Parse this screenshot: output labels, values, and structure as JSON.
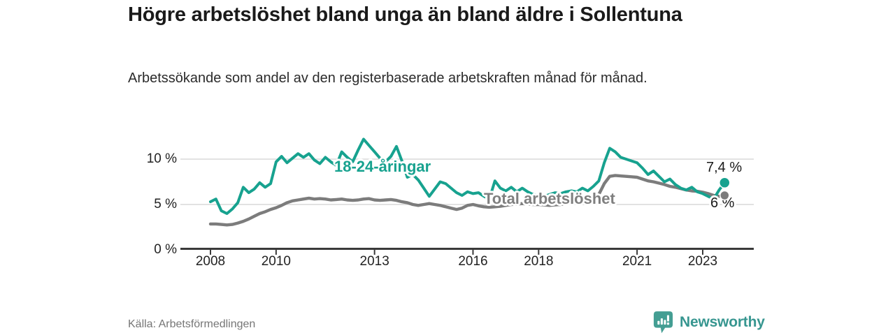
{
  "header": {
    "title": "Högre arbetslöshet bland unga än bland äldre i Sollentuna",
    "subtitle": "Arbetssökande som andel av den registerbaserade arbetskraften månad för månad."
  },
  "footer": {
    "source": "Källa: Arbetsförmedlingen",
    "brand": "Newsworthy"
  },
  "icons": {
    "brand_icon": "bar-chart-speech-bubble-icon"
  },
  "colors": {
    "youth_line": "#17a28f",
    "total_line": "#7c7c7c",
    "axis": "#3a3a3a",
    "gridline": "#d8d8d8",
    "brand_teal": "#379690"
  },
  "chart_data": {
    "type": "line",
    "title": "Högre arbetslöshet bland unga än bland äldre i Sollentuna",
    "subtitle": "Arbetssökande som andel av den registerbaserade arbetskraften månad för månad.",
    "unit": "%",
    "grid": "horizontal-only",
    "legend_position": "inline-labels",
    "ylim": [
      0,
      12.5
    ],
    "y_tick_labels": [
      "10 %",
      "5 %",
      "0 %"
    ],
    "y_tick_values": [
      10,
      5,
      0
    ],
    "x_tick_labels": [
      "2008",
      "2010",
      "2013",
      "2016",
      "2018",
      "2021",
      "2023"
    ],
    "x_tick_years": [
      2008,
      2010,
      2013,
      2016,
      2018,
      2021,
      2023
    ],
    "x_start_year": 2008.0,
    "x_step_years": 0.16667,
    "series": [
      {
        "name": "18-24-åringar",
        "color": "#17a28f",
        "end_label": "7,4 %",
        "end_value": 7.4,
        "values": [
          5.3,
          5.6,
          4.3,
          4.0,
          4.5,
          5.2,
          6.9,
          6.3,
          6.7,
          7.4,
          6.9,
          7.3,
          9.7,
          10.3,
          9.6,
          10.1,
          10.6,
          10.2,
          10.6,
          9.9,
          9.5,
          10.2,
          9.7,
          9.3,
          10.8,
          10.2,
          9.7,
          11.0,
          12.2,
          11.5,
          10.8,
          10.1,
          9.7,
          10.3,
          11.4,
          9.8,
          8.0,
          8.3,
          7.7,
          6.8,
          5.9,
          6.7,
          7.5,
          7.3,
          6.8,
          6.3,
          6.0,
          6.4,
          6.2,
          6.3,
          5.9,
          5.6,
          7.6,
          6.8,
          6.5,
          6.9,
          6.4,
          6.8,
          6.4,
          6.1,
          6.0,
          5.9,
          6.1,
          6.3,
          6.2,
          6.4,
          6.5,
          6.4,
          6.8,
          6.5,
          7.0,
          7.6,
          9.6,
          11.2,
          10.8,
          10.2,
          10.0,
          9.8,
          9.6,
          9.0,
          8.3,
          8.7,
          8.1,
          7.5,
          7.8,
          7.2,
          6.8,
          6.6,
          6.9,
          6.4,
          6.2,
          5.9,
          5.6,
          6.6,
          7.4
        ]
      },
      {
        "name": "Total arbetslöshet",
        "color": "#7c7c7c",
        "end_label": "6 %",
        "end_value": 6.0,
        "values": [
          2.85,
          2.85,
          2.8,
          2.75,
          2.8,
          2.95,
          3.15,
          3.4,
          3.7,
          4.0,
          4.2,
          4.45,
          4.65,
          4.9,
          5.2,
          5.4,
          5.5,
          5.6,
          5.7,
          5.6,
          5.65,
          5.6,
          5.5,
          5.55,
          5.6,
          5.5,
          5.45,
          5.5,
          5.6,
          5.65,
          5.5,
          5.45,
          5.5,
          5.55,
          5.45,
          5.3,
          5.2,
          5.0,
          4.9,
          5.0,
          5.1,
          5.0,
          4.9,
          4.75,
          4.6,
          4.45,
          4.6,
          4.9,
          5.0,
          4.85,
          4.75,
          4.7,
          4.75,
          4.8,
          4.9,
          5.0,
          5.05,
          5.1,
          5.05,
          5.0,
          5.0,
          4.95,
          4.9,
          4.95,
          5.0,
          5.1,
          5.2,
          5.3,
          5.4,
          5.5,
          5.6,
          6.1,
          7.3,
          8.1,
          8.2,
          8.15,
          8.1,
          8.05,
          8.0,
          7.8,
          7.6,
          7.5,
          7.35,
          7.2,
          7.0,
          6.9,
          6.75,
          6.6,
          6.5,
          6.45,
          6.35,
          6.2,
          6.0,
          5.9,
          6.0
        ]
      }
    ]
  }
}
